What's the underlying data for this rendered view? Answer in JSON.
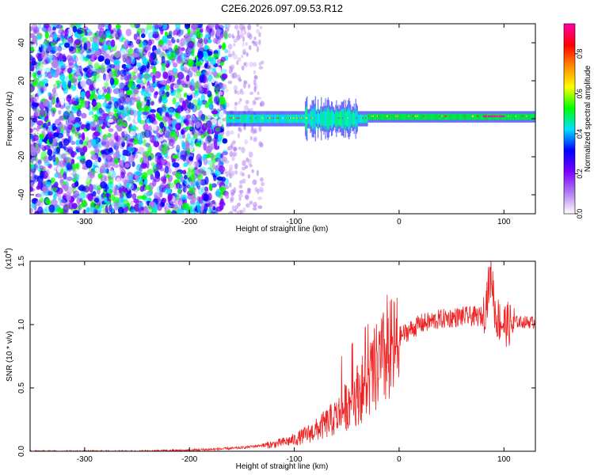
{
  "title": "C2E6.2026.097.09.53.R12",
  "chart_data": [
    {
      "type": "heatmap",
      "xlabel": "Height of straight line (km)",
      "ylabel": "Frequency (Hz)",
      "xlim": [
        -352,
        130
      ],
      "ylim": [
        -50,
        50
      ],
      "xticks": [
        -300,
        -200,
        -100,
        0,
        100
      ],
      "yticks": [
        -40,
        -20,
        0,
        20,
        40
      ],
      "colorbar": {
        "label": "Normalized spectral amplitude",
        "range": [
          0,
          0.95
        ],
        "ticks": [
          "0.0",
          "0.2",
          "0.4",
          "0.6",
          "0.8"
        ],
        "colors": [
          "#ffffff",
          "#b07cf0",
          "#7a00ff",
          "#0000ff",
          "#00e0ff",
          "#00ff00",
          "#ffff00",
          "#ff8800",
          "#ff0000",
          "#ff00aa"
        ]
      },
      "regions": [
        {
          "name": "noise",
          "x": [
            -352,
            -165
          ],
          "freq": [
            -50,
            50
          ],
          "level": 0.1
        },
        {
          "name": "sparse-noise",
          "x": [
            -165,
            -130
          ],
          "freq": [
            -50,
            50
          ],
          "level": 0.05
        },
        {
          "name": "signal-onset",
          "x": [
            -165,
            -30
          ],
          "freq_center": 0,
          "freq_halfwidth": 4,
          "level": 0.35
        },
        {
          "name": "signal-plateau",
          "x": [
            -30,
            130
          ],
          "freq_center": 1,
          "freq_halfwidth": 3,
          "level": 0.45
        },
        {
          "name": "peak",
          "x": [
            80,
            100
          ],
          "freq_center": 1,
          "level": 0.9
        }
      ]
    },
    {
      "type": "line",
      "xlabel": "Height of straight line (km)",
      "ylabel": "SNR (10 * v/v)",
      "scale_label": "(x10",
      "scale_exponent": "4",
      "xlim": [
        -352,
        130
      ],
      "ylim": [
        0,
        1.5
      ],
      "xticks": [
        -300,
        -200,
        -100,
        0,
        100
      ],
      "yticks": [
        "0.0",
        "0.5",
        "1.0",
        "1.5"
      ],
      "series": [
        {
          "color": "#ee2222",
          "x": [
            -352,
            -250,
            -200,
            -170,
            -150,
            -120,
            -100,
            -80,
            -60,
            -45,
            -30,
            -20,
            -10,
            0,
            20,
            40,
            60,
            80,
            88,
            92,
            100,
            115,
            130
          ],
          "y": [
            0.0,
            0.0,
            0.01,
            0.02,
            0.03,
            0.06,
            0.1,
            0.18,
            0.3,
            0.45,
            0.6,
            0.75,
            0.85,
            0.92,
            1.02,
            1.06,
            1.08,
            1.08,
            1.45,
            1.1,
            1.04,
            1.03,
            1.03
          ]
        }
      ]
    }
  ]
}
